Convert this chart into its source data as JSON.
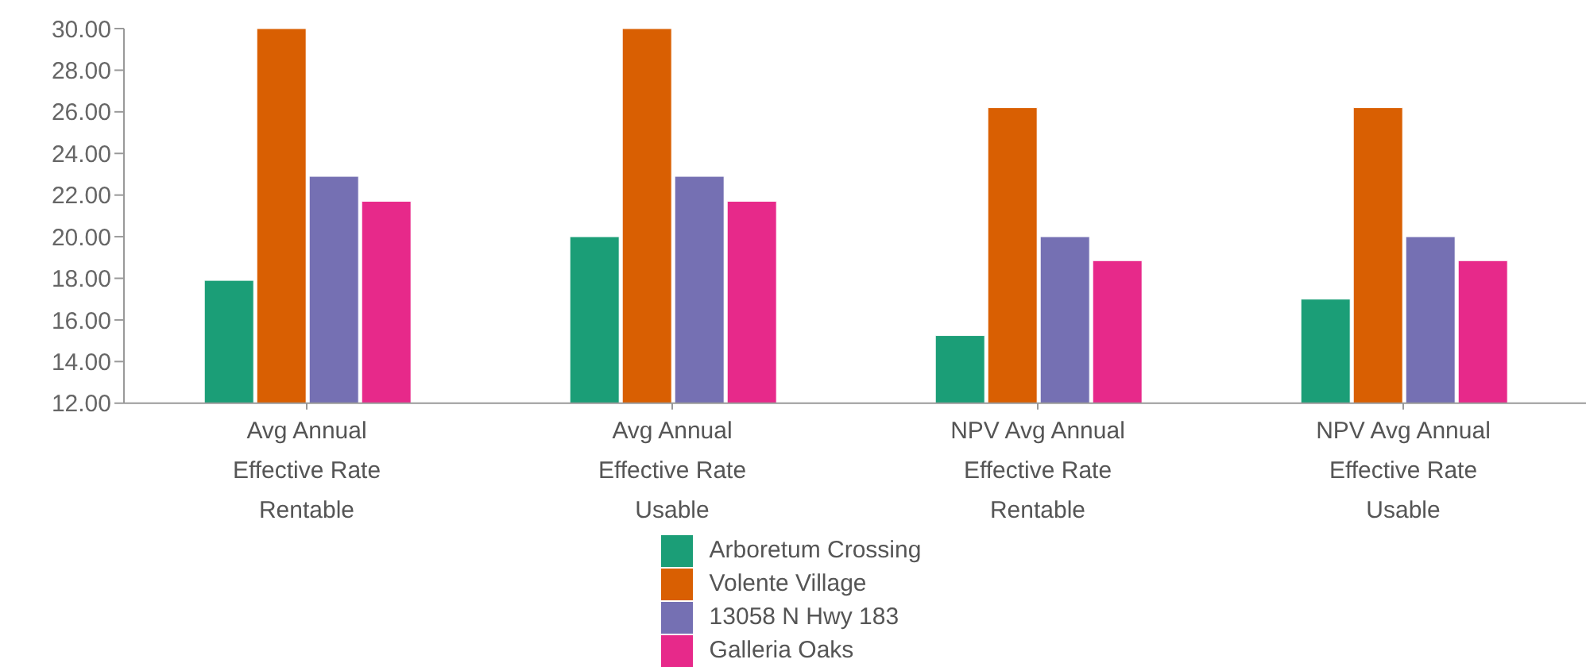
{
  "chart_data": {
    "type": "bar",
    "categories": [
      "Avg Annual Effective Rate Rentable",
      "Avg Annual Effective Rate Usable",
      "NPV Avg Annual Effective Rate Rentable",
      "NPV Avg Annual Effective Rate Usable"
    ],
    "series": [
      {
        "name": "Arboretum Crossing",
        "color": "#1b9e77",
        "values": [
          17.9,
          20.0,
          15.25,
          17.0
        ]
      },
      {
        "name": "Volente Village",
        "color": "#d95f02",
        "values": [
          30.0,
          30.0,
          26.2,
          26.2
        ]
      },
      {
        "name": "13058 N Hwy 183",
        "color": "#7570b3",
        "values": [
          22.9,
          22.9,
          20.0,
          20.0
        ]
      },
      {
        "name": "Galleria Oaks",
        "color": "#e7298a",
        "values": [
          21.7,
          21.7,
          18.85,
          18.85
        ]
      }
    ],
    "ylim": [
      12,
      30
    ],
    "yticks": [
      {
        "value": 12,
        "label": "12.00"
      },
      {
        "value": 14,
        "label": "14.00"
      },
      {
        "value": 16,
        "label": "16.00"
      },
      {
        "value": 18,
        "label": "18.00"
      },
      {
        "value": 20,
        "label": "20.00"
      },
      {
        "value": 22,
        "label": "22.00"
      },
      {
        "value": 24,
        "label": "24.00"
      },
      {
        "value": 26,
        "label": "26.00"
      },
      {
        "value": 28,
        "label": "28.00"
      },
      {
        "value": 30,
        "label": "30.00"
      }
    ],
    "grid": false,
    "legend": "bottom"
  }
}
